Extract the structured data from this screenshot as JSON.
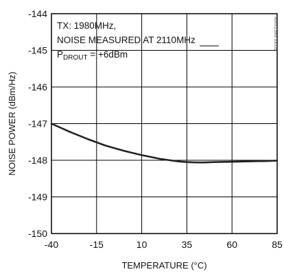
{
  "chart_data": {
    "type": "line",
    "title": "",
    "xlabel": "TEMPERATURE (°C)",
    "ylabel": "NOISE POWER (dBm/Hz)",
    "xlim": [
      -40,
      85
    ],
    "ylim": [
      -150,
      -144
    ],
    "xticks": [
      -40,
      -15,
      10,
      35,
      60,
      85
    ],
    "yticks": [
      -144,
      -145,
      -146,
      -147,
      -148,
      -149,
      -150
    ],
    "grid": true,
    "annotations": {
      "line1": "TX: 1980MHz,",
      "line2": "NOISE MEASURED AT 2110MHz",
      "line3_prefix": "P",
      "line3_sub": "DROUT",
      "line3_suffix": " = +6dBm"
    },
    "watermark": "MAX2383 toc09",
    "series": [
      {
        "x": [
          -40,
          -30,
          -20,
          -10,
          0,
          10,
          20,
          30,
          35,
          40,
          45,
          50,
          60,
          70,
          80,
          85
        ],
        "y": [
          -147.0,
          -147.22,
          -147.42,
          -147.6,
          -147.74,
          -147.86,
          -147.96,
          -148.03,
          -148.05,
          -148.06,
          -148.06,
          -148.05,
          -148.04,
          -148.03,
          -148.02,
          -148.01
        ]
      }
    ]
  }
}
